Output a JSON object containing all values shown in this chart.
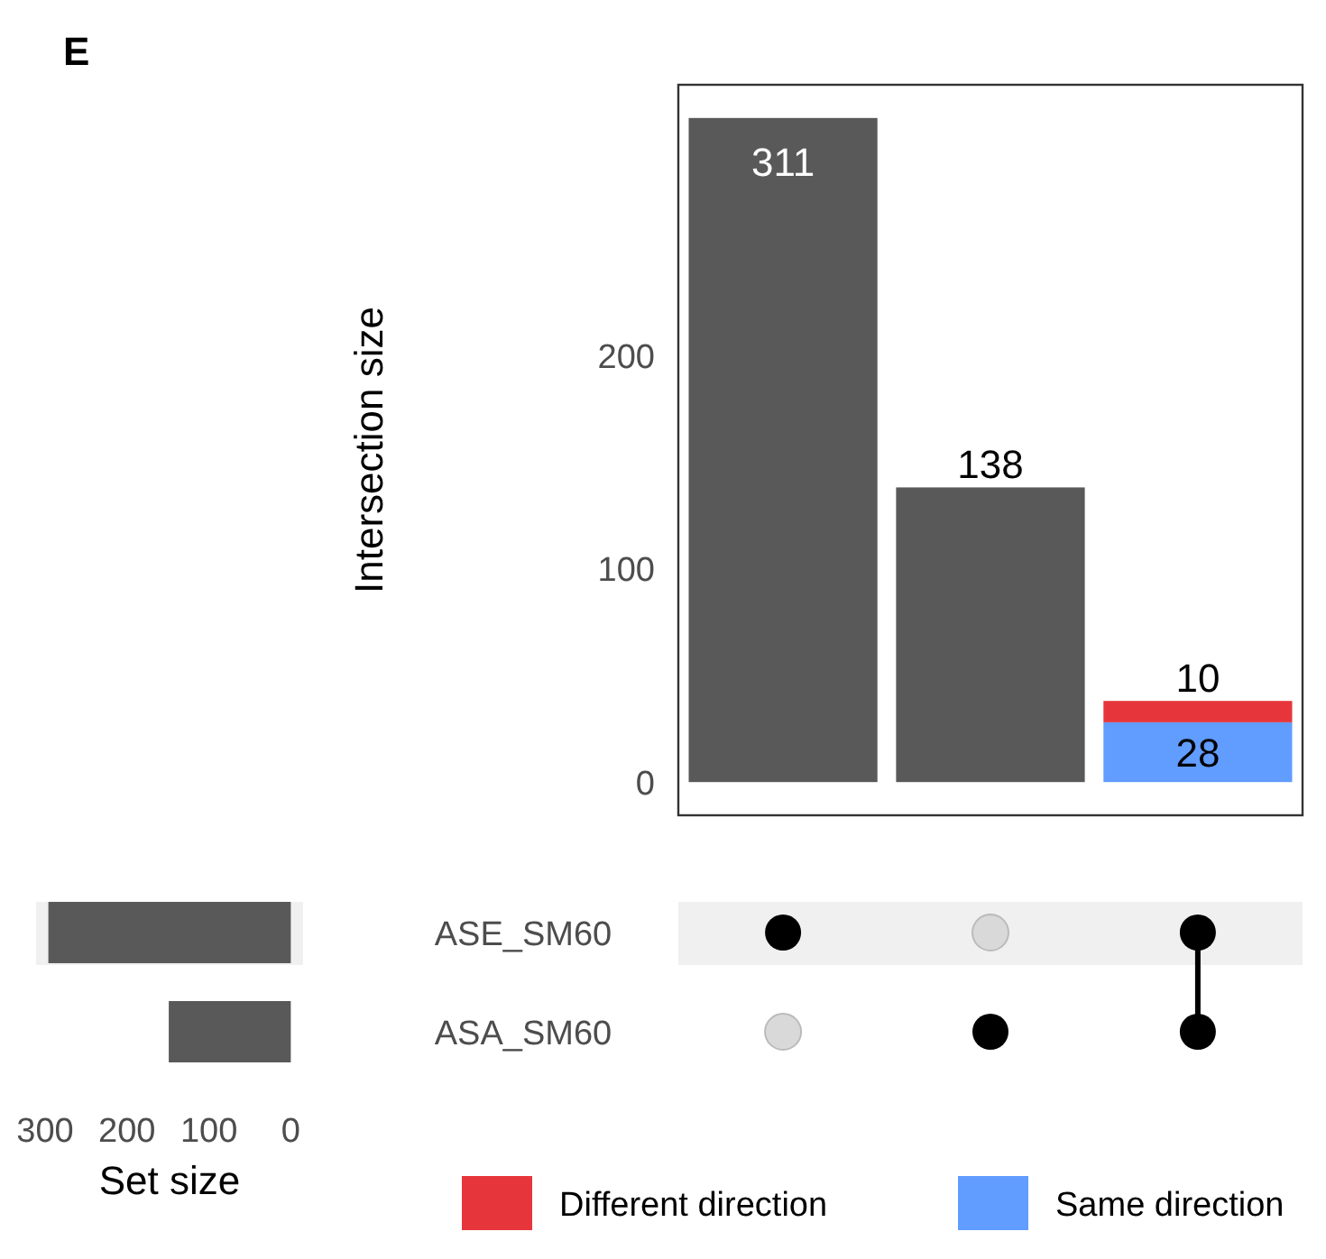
{
  "chart_data": [
    {
      "type": "bar",
      "ylabel": "Intersection size",
      "categories": [
        null,
        null,
        null
      ],
      "stacked": true,
      "ylim": [
        -15.55,
        326.55
      ],
      "yticks": [
        0,
        100,
        200
      ],
      "tick_labels": "y",
      "data_labels": true,
      "legend": "bottom",
      "grid": false,
      "series": [
        {
          "color": "#595959",
          "values": [
            311,
            138,
            null
          ]
        },
        {
          "name": "Same direction",
          "color": "#619cff",
          "values": [
            null,
            null,
            28
          ]
        },
        {
          "name": "Different direction",
          "color": "#e6363b",
          "values": [
            null,
            null,
            10
          ]
        }
      ]
    },
    {
      "type": "bar",
      "orientation": "horizontal",
      "title": "E",
      "xlabel": "Set size",
      "categories": [
        "ASE_SM60",
        "ASA_SM60"
      ],
      "xlim": [
        311,
        -15
      ],
      "xticks": [
        300,
        200,
        100,
        0
      ],
      "color": "#595959",
      "values": [
        296,
        149
      ],
      "grid": false
    }
  ]
}
